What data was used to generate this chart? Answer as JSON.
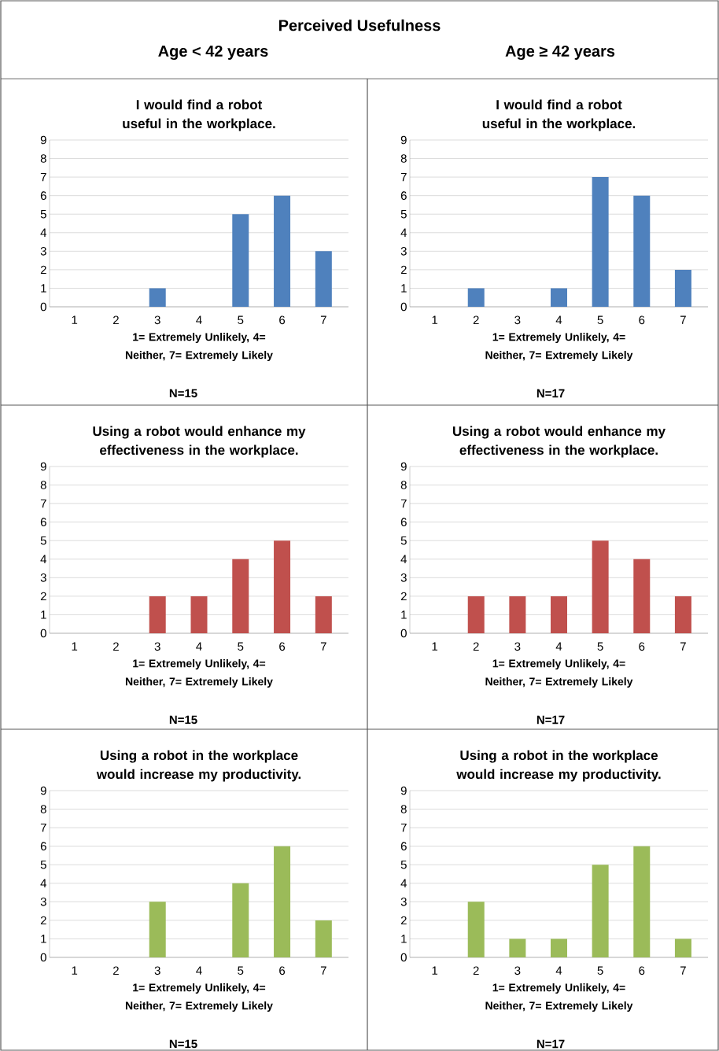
{
  "chart_data": [
    {
      "type": "bar",
      "title": "I would find a robot useful in the workplace.",
      "xlabel": "1= Extremely Unlikely, 4= Neither, 7= Extremely Likely",
      "categories": [
        "1",
        "2",
        "3",
        "4",
        "5",
        "6",
        "7"
      ],
      "values": [
        0,
        0,
        1,
        0,
        5,
        6,
        3
      ],
      "color": "#4f81bd",
      "ylim": [
        0,
        9
      ],
      "yticks": [
        0,
        1,
        2,
        3,
        4,
        5,
        6,
        7,
        8,
        9
      ],
      "grid": "y",
      "annotations": [
        "Perceived Usefulness",
        "Age < 42 years",
        "N=15"
      ]
    },
    {
      "type": "bar",
      "title": "I would find a robot useful in the workplace.",
      "xlabel": "1= Extremely Unlikely, 4= Neither, 7= Extremely Likely",
      "categories": [
        "1",
        "2",
        "3",
        "4",
        "5",
        "6",
        "7"
      ],
      "values": [
        0,
        1,
        0,
        1,
        7,
        6,
        2
      ],
      "color": "#4f81bd",
      "ylim": [
        0,
        9
      ],
      "yticks": [
        0,
        1,
        2,
        3,
        4,
        5,
        6,
        7,
        8,
        9
      ],
      "grid": "y",
      "annotations": [
        "Age ≥ 42 years",
        "N=17"
      ]
    },
    {
      "type": "bar",
      "title": "Using a robot would enhance my effectiveness in the workplace.",
      "xlabel": "1= Extremely Unlikely, 4= Neither, 7= Extremely Likely",
      "categories": [
        "1",
        "2",
        "3",
        "4",
        "5",
        "6",
        "7"
      ],
      "values": [
        0,
        0,
        2,
        2,
        4,
        5,
        2
      ],
      "color": "#c0504d",
      "ylim": [
        0,
        9
      ],
      "yticks": [
        0,
        1,
        2,
        3,
        4,
        5,
        6,
        7,
        8,
        9
      ],
      "grid": "y",
      "annotations": [
        "N=15"
      ]
    },
    {
      "type": "bar",
      "title": "Using a robot would enhance my effectiveness in the workplace.",
      "xlabel": "1= Extremely Unlikely, 4= Neither, 7= Extremely Likely",
      "categories": [
        "1",
        "2",
        "3",
        "4",
        "5",
        "6",
        "7"
      ],
      "values": [
        0,
        2,
        2,
        2,
        5,
        4,
        2
      ],
      "color": "#c0504d",
      "ylim": [
        0,
        9
      ],
      "yticks": [
        0,
        1,
        2,
        3,
        4,
        5,
        6,
        7,
        8,
        9
      ],
      "grid": "y",
      "annotations": [
        "N=17"
      ]
    },
    {
      "type": "bar",
      "title": "Using a robot in the workplace would increase my productivity.",
      "xlabel": "1= Extremely Unlikely, 4= Neither, 7= Extremely Likely",
      "categories": [
        "1",
        "2",
        "3",
        "4",
        "5",
        "6",
        "7"
      ],
      "values": [
        0,
        0,
        3,
        0,
        4,
        6,
        2
      ],
      "color": "#9bbb59",
      "ylim": [
        0,
        9
      ],
      "yticks": [
        0,
        1,
        2,
        3,
        4,
        5,
        6,
        7,
        8,
        9
      ],
      "grid": "y",
      "annotations": [
        "N=15"
      ]
    },
    {
      "type": "bar",
      "title": "Using a robot in the workplace would increase my productivity.",
      "xlabel": "1= Extremely Unlikely, 4= Neither, 7= Extremely Likely",
      "categories": [
        "1",
        "2",
        "3",
        "4",
        "5",
        "6",
        "7"
      ],
      "values": [
        0,
        3,
        1,
        1,
        5,
        6,
        1
      ],
      "color": "#9bbb59",
      "ylim": [
        0,
        9
      ],
      "yticks": [
        0,
        1,
        2,
        3,
        4,
        5,
        6,
        7,
        8,
        9
      ],
      "grid": "y",
      "annotations": [
        "N=17"
      ]
    }
  ]
}
